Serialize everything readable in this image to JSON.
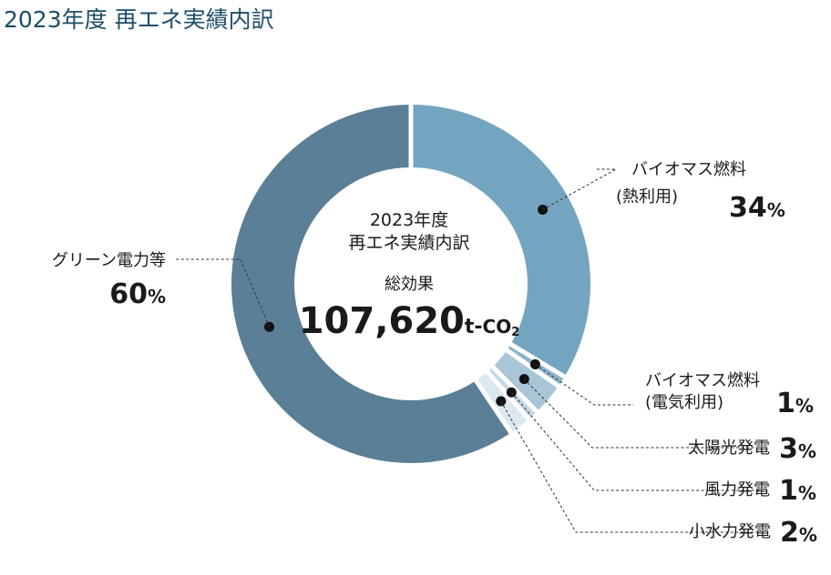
{
  "page": {
    "title": "2023年度 再エネ実績内訳"
  },
  "chart_data": {
    "type": "pie",
    "center": {
      "title_line1": "2023年度",
      "title_line2": "再エネ実績内訳",
      "total_label": "総効果",
      "total_value": "107,620",
      "total_unit_prefix": "t-",
      "total_unit_co": "CO",
      "total_unit_sub": "2"
    },
    "slices": [
      {
        "name_lines": [
          "バイオマス燃料",
          "(熱利用)"
        ],
        "value": 34,
        "pct_text": "34",
        "color": "#74a5c0"
      },
      {
        "name_lines": [
          "バイオマス燃料",
          "(電気利用)"
        ],
        "value": 1,
        "pct_text": "1",
        "color": "#8fb4c9"
      },
      {
        "name_lines": [
          "太陽光発電"
        ],
        "value": 3,
        "pct_text": "3",
        "color": "#a9c6d7"
      },
      {
        "name_lines": [
          "風力発電"
        ],
        "value": 1,
        "pct_text": "1",
        "color": "#c3d8e4"
      },
      {
        "name_lines": [
          "小水力発電"
        ],
        "value": 2,
        "pct_text": "2",
        "color": "#dbe8f0"
      },
      {
        "name_lines": [
          "グリーン電力等"
        ],
        "value": 60,
        "pct_text": "60",
        "color": "#5a7f96"
      }
    ],
    "percent_sign": "%"
  }
}
